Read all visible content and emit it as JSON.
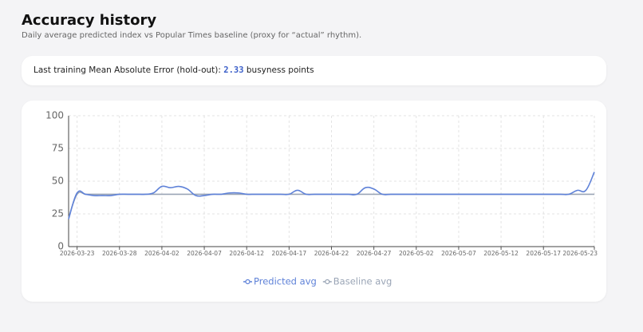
{
  "header": {
    "title": "Accuracy history",
    "subtitle": "Daily average predicted index vs Popular Times baseline (proxy for “actual” rhythm)."
  },
  "metric": {
    "label": "Last training Mean Absolute Error (hold-out):",
    "value": 2.33,
    "unit": "busyness points"
  },
  "chart_data": {
    "type": "line",
    "categories": [
      null,
      "2026-03-23",
      null,
      null,
      null,
      null,
      "2026-03-28",
      null,
      null,
      null,
      null,
      "2026-04-02",
      null,
      null,
      null,
      null,
      "2026-04-07",
      null,
      null,
      null,
      null,
      "2026-04-12",
      null,
      null,
      null,
      null,
      "2026-04-17",
      null,
      null,
      null,
      null,
      "2026-04-22",
      null,
      null,
      null,
      null,
      "2026-04-27",
      null,
      null,
      null,
      null,
      "2026-05-02",
      null,
      null,
      null,
      null,
      "2026-05-07",
      null,
      null,
      null,
      null,
      "2026-05-12",
      null,
      null,
      null,
      null,
      "2026-05-17",
      null,
      null,
      null,
      null,
      null,
      "2026-05-23"
    ],
    "series": [
      {
        "name": "Predicted avg",
        "color": "#5f82d8",
        "values": [
          21,
          41,
          40,
          39,
          39,
          39,
          40,
          40,
          40,
          40,
          41,
          46,
          45,
          46,
          44,
          39,
          39,
          40,
          40,
          41,
          41,
          40,
          40,
          40,
          40,
          40,
          40,
          43,
          40,
          40,
          40,
          40,
          40,
          40,
          40,
          45,
          44,
          40,
          40,
          40,
          40,
          40,
          40,
          40,
          40,
          40,
          40,
          40,
          40,
          40,
          40,
          40,
          40,
          40,
          40,
          40,
          40,
          40,
          40,
          40,
          43,
          43,
          57
        ]
      },
      {
        "name": "Baseline avg",
        "color": "#9aa5b6",
        "values": [
          22,
          40,
          40,
          40,
          40,
          40,
          40,
          40,
          40,
          40,
          40,
          40,
          40,
          40,
          40,
          40,
          40,
          40,
          40,
          40,
          40,
          40,
          40,
          40,
          40,
          40,
          40,
          40,
          40,
          40,
          40,
          40,
          40,
          40,
          40,
          40,
          40,
          40,
          40,
          40,
          40,
          40,
          40,
          40,
          40,
          40,
          40,
          40,
          40,
          40,
          40,
          40,
          40,
          40,
          40,
          40,
          40,
          40,
          40,
          40,
          40,
          40,
          40
        ]
      }
    ],
    "ylim": [
      0,
      100
    ],
    "yticks": [
      0,
      25,
      50,
      75,
      100
    ],
    "grid": true,
    "legend": "bottom"
  }
}
